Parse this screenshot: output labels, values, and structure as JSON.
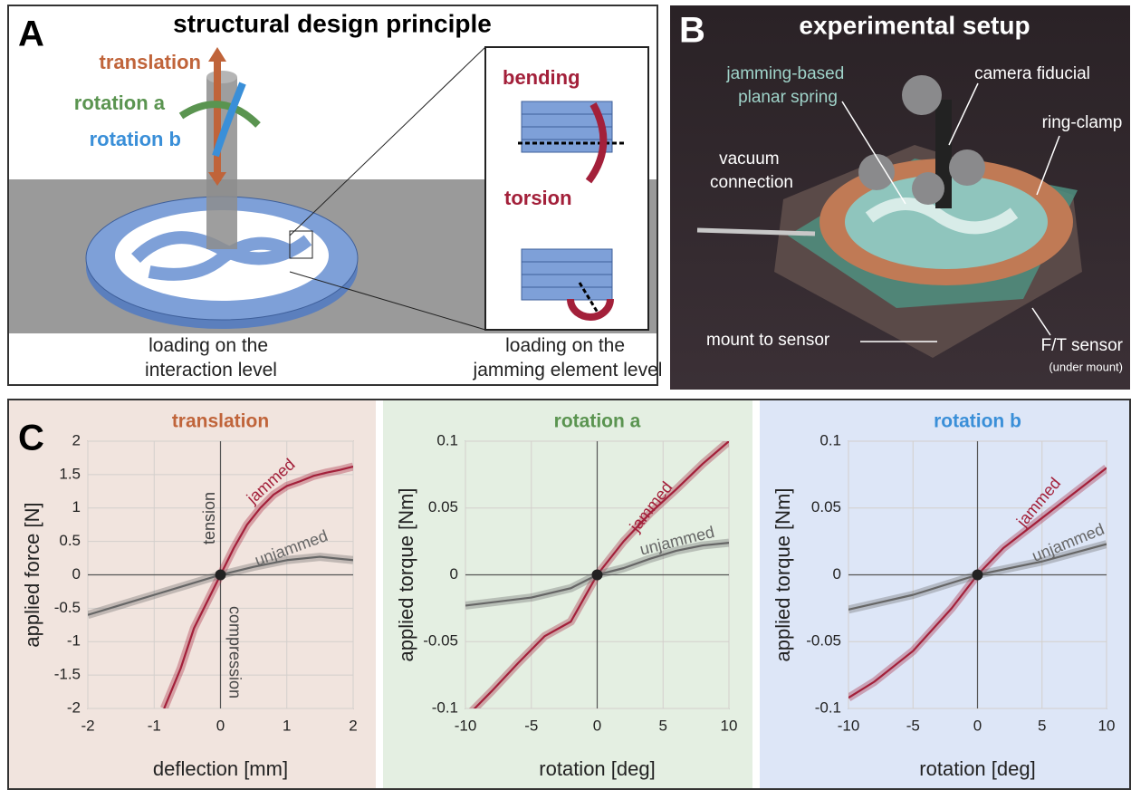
{
  "panel_a": {
    "letter": "A",
    "title": "structural design principle",
    "labels": {
      "translation": "translation",
      "rotation_a": "rotation a",
      "rotation_b": "rotation b",
      "bending": "bending",
      "torsion": "torsion"
    },
    "captions": [
      [
        "loading on the",
        "interaction level"
      ],
      [
        "loading on the",
        "jamming element level"
      ]
    ]
  },
  "panel_b": {
    "letter": "B",
    "title": "experimental setup",
    "labels": {
      "spring": [
        "jamming-based",
        "planar spring"
      ],
      "fiducial": [
        "camera fiducial"
      ],
      "clamp": [
        "ring-clamp"
      ],
      "vacuum": [
        "vacuum",
        "connection"
      ],
      "mount": [
        "mount to sensor"
      ],
      "sensor": [
        "F/T sensor"
      ],
      "sensor_note": [
        "(under mount)"
      ]
    }
  },
  "panel_c_letter": "C",
  "chart_data": [
    {
      "type": "line",
      "title": "translation",
      "title_color": "#c0643a",
      "background": "#f1e4de",
      "xlabel": "deflection [mm]",
      "ylabel": "applied force  [N]",
      "xlim": [
        -2,
        2
      ],
      "ylim": [
        -2,
        2
      ],
      "xticks": [
        -2,
        -1,
        0,
        1,
        2
      ],
      "yticks": [
        -2,
        -1.5,
        -1,
        -0.5,
        0,
        0.5,
        1,
        1.5,
        2
      ],
      "annotations": [
        "jammed",
        "unjammed",
        "tension",
        "compression"
      ],
      "series": [
        {
          "name": "jammed",
          "color": "#a3203a",
          "x": [
            -0.85,
            -0.6,
            -0.4,
            -0.2,
            0,
            0.2,
            0.4,
            0.6,
            0.8,
            1.0,
            1.2,
            1.4,
            1.6,
            1.8,
            2.0
          ],
          "values": [
            -2,
            -1.4,
            -0.8,
            -0.4,
            0,
            0.4,
            0.75,
            1.0,
            1.2,
            1.33,
            1.4,
            1.48,
            1.53,
            1.57,
            1.62
          ]
        },
        {
          "name": "unjammed",
          "color": "#666666",
          "x": [
            -2,
            -1.5,
            -1,
            -0.5,
            0,
            0.5,
            1,
            1.5,
            2
          ],
          "values": [
            -0.6,
            -0.45,
            -0.3,
            -0.15,
            0,
            0.12,
            0.22,
            0.27,
            0.22
          ]
        }
      ]
    },
    {
      "type": "line",
      "title": "rotation a",
      "title_color": "#5a9450",
      "background": "#e4efe2",
      "xlabel": "rotation [deg]",
      "ylabel": "applied torque [Nm]",
      "xlim": [
        -10,
        10
      ],
      "ylim": [
        -0.1,
        0.1
      ],
      "xticks": [
        -10,
        -5,
        0,
        5,
        10
      ],
      "yticks": [
        -0.1,
        -0.05,
        0,
        0.05,
        0.1
      ],
      "annotations": [
        "jammed",
        "unjammed"
      ],
      "series": [
        {
          "name": "jammed",
          "color": "#a3203a",
          "x": [
            -10,
            -8,
            -6,
            -4,
            -2,
            0,
            2,
            4,
            6,
            8,
            10
          ],
          "values": [
            -0.107,
            -0.087,
            -0.066,
            -0.046,
            -0.035,
            0,
            0.025,
            0.046,
            0.064,
            0.083,
            0.1
          ]
        },
        {
          "name": "unjammed",
          "color": "#666666",
          "x": [
            -10,
            -5,
            -2,
            0,
            2,
            4,
            6,
            8,
            10
          ],
          "values": [
            -0.023,
            -0.017,
            -0.01,
            0,
            0.005,
            0.012,
            0.018,
            0.022,
            0.024
          ]
        }
      ]
    },
    {
      "type": "line",
      "title": "rotation b",
      "title_color": "#3a8fd8",
      "background": "#dde6f7",
      "xlabel": "rotation [deg]",
      "ylabel": "applied torque [Nm]",
      "xlim": [
        -10,
        10
      ],
      "ylim": [
        -0.1,
        0.1
      ],
      "xticks": [
        -10,
        -5,
        0,
        5,
        10
      ],
      "yticks": [
        -0.1,
        -0.05,
        0,
        0.05,
        0.1
      ],
      "annotations": [
        "jammed",
        "unjammed"
      ],
      "series": [
        {
          "name": "jammed",
          "color": "#a3203a",
          "x": [
            -10,
            -8,
            -5,
            -2,
            0,
            2,
            4,
            6,
            8,
            10
          ],
          "values": [
            -0.092,
            -0.08,
            -0.057,
            -0.025,
            0,
            0.02,
            0.035,
            0.05,
            0.065,
            0.08
          ]
        },
        {
          "name": "unjammed",
          "color": "#666666",
          "x": [
            -10,
            -5,
            0,
            5,
            10
          ],
          "values": [
            -0.026,
            -0.015,
            0,
            0.01,
            0.023
          ]
        }
      ]
    }
  ]
}
